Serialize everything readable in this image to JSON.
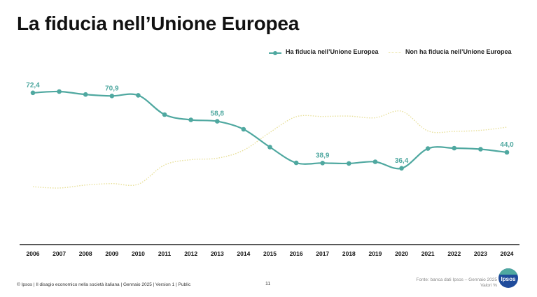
{
  "title": "La fiducia nell’Unione Europea",
  "legend": {
    "trust": "Ha fiducia nell’Unione Europea",
    "distrust": "Non ha fiducia nell’Unione Europea"
  },
  "footer": {
    "left": "© Ipsos | Il disagio economico nella società italiana | Gennaio 2025 | Version 1 | Public",
    "page": "11",
    "source_line1": "Fonte: banca dati Ipsos – Gennaio 2025",
    "source_line2": "Valori %",
    "logo": "Ipsos"
  },
  "colors": {
    "trust": "#4fa8a0",
    "distrust": "#e8e09a",
    "axis": "#222222"
  },
  "chart_data": {
    "type": "line",
    "categories": [
      "2006",
      "2007",
      "2008",
      "2009",
      "2010",
      "2011",
      "2012",
      "2013",
      "2014",
      "2015",
      "2016",
      "2017",
      "2018",
      "2019",
      "2020",
      "2021",
      "2022",
      "2023",
      "2024"
    ],
    "series": [
      {
        "name": "Ha fiducia nell’Unione Europea",
        "values": [
          72.4,
          73.0,
          71.6,
          70.9,
          71.2,
          62.0,
          59.5,
          58.8,
          55.0,
          46.5,
          39.0,
          38.9,
          38.7,
          39.5,
          36.4,
          45.8,
          46.0,
          45.5,
          44.0
        ],
        "data_labels": {
          "0": "72,4",
          "3": "70,9",
          "7": "58,8",
          "11": "38,9",
          "14": "36,4",
          "18": "44,0"
        }
      },
      {
        "name": "Non ha fiducia nell’Unione Europea",
        "values": [
          27.6,
          27.0,
          28.4,
          29.1,
          28.8,
          38.0,
          40.5,
          41.2,
          45.0,
          53.5,
          61.0,
          61.1,
          61.3,
          60.5,
          63.6,
          54.2,
          54.0,
          54.5,
          56.0
        ]
      }
    ],
    "ylim": [
      0,
      86
    ],
    "grid": false
  }
}
